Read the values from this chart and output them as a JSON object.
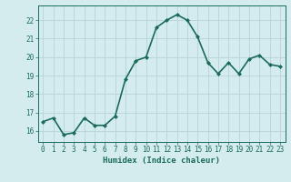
{
  "x": [
    0,
    1,
    2,
    3,
    4,
    5,
    6,
    7,
    8,
    9,
    10,
    11,
    12,
    13,
    14,
    15,
    16,
    17,
    18,
    19,
    20,
    21,
    22,
    23
  ],
  "y": [
    16.5,
    16.7,
    15.8,
    15.9,
    16.7,
    16.3,
    16.3,
    16.8,
    18.8,
    19.8,
    20.0,
    21.6,
    22.0,
    22.3,
    22.0,
    21.1,
    19.7,
    19.1,
    19.7,
    19.1,
    19.9,
    20.1,
    19.6,
    19.5
  ],
  "line_color": "#1a6b5a",
  "marker": "D",
  "marker_size": 2.0,
  "bg_color": "#d4ecee",
  "grid_color": "#b8d4d8",
  "axis_color": "#1a6b5a",
  "xlabel": "Humidex (Indice chaleur)",
  "ylim": [
    15.4,
    22.8
  ],
  "xlim": [
    -0.5,
    23.5
  ],
  "yticks": [
    16,
    17,
    18,
    19,
    20,
    21,
    22
  ],
  "xticks": [
    0,
    1,
    2,
    3,
    4,
    5,
    6,
    7,
    8,
    9,
    10,
    11,
    12,
    13,
    14,
    15,
    16,
    17,
    18,
    19,
    20,
    21,
    22,
    23
  ],
  "font_color": "#1a6b5a",
  "line_width": 1.2,
  "tick_fontsize": 5.5,
  "xlabel_fontsize": 6.5
}
